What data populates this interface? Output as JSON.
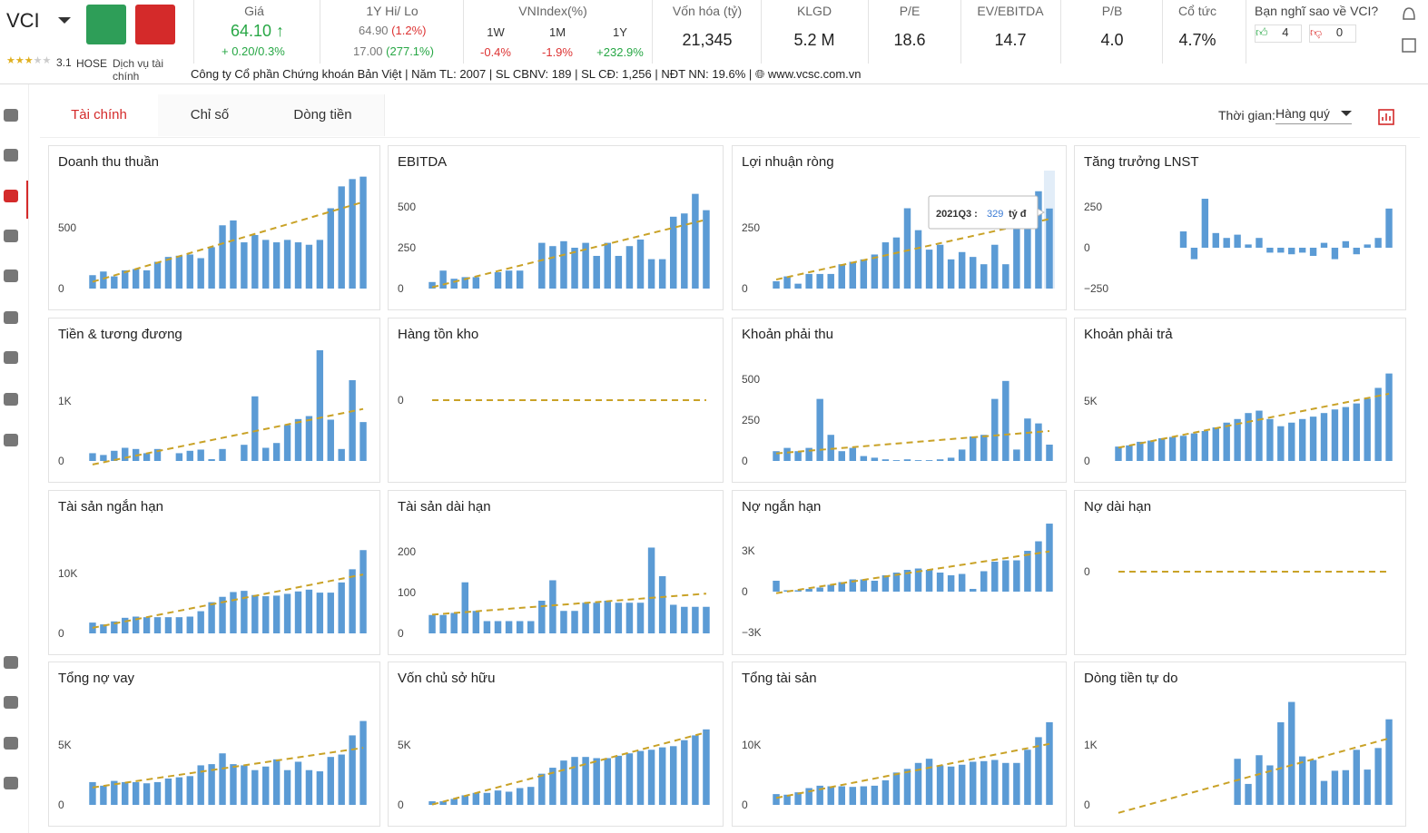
{
  "header": {
    "ticker": "VCI",
    "rating": "3.1",
    "exchange": "HOSE",
    "sector": "Dịch vụ tài chính",
    "price": {
      "label": "Giá",
      "value": "64.10",
      "change": "+ 0.20/0.3%"
    },
    "hi_lo": {
      "label": "1Y Hi/ Lo",
      "hi": "64.90",
      "hi_pct": "(1.2%)",
      "lo": "17.00",
      "lo_pct": "(277.1%)"
    },
    "vnindex": {
      "label": "VNIndex(%)",
      "periods": [
        "1W",
        "1M",
        "1Y"
      ],
      "values": [
        "-0.4%",
        "-1.9%",
        "+232.9%"
      ]
    },
    "metrics": [
      {
        "label": "Vốn hóa (tỷ)",
        "value": "21,345"
      },
      {
        "label": "KLGD",
        "value": "5.2 M"
      },
      {
        "label": "P/E",
        "value": "18.6"
      },
      {
        "label": "EV/EBITDA",
        "value": "14.7"
      },
      {
        "label": "P/B",
        "value": "4.0"
      },
      {
        "label": "Cổ tức",
        "value": "4.7%"
      }
    ],
    "vote": {
      "question": "Bạn nghĩ sao về VCI?",
      "up": "4",
      "down": "0"
    }
  },
  "company": {
    "name": "Công ty Cổ phần Chứng khoán Bản Việt",
    "items": [
      {
        "label": "Năm TL:",
        "value": "2007"
      },
      {
        "label": "SL CBNV:",
        "value": "189"
      },
      {
        "label": "SL CĐ:",
        "value": "1,256"
      },
      {
        "label": "NĐT NN:",
        "value": "19.6%"
      }
    ],
    "website": "www.vcsc.com.vn"
  },
  "tabs": [
    "Tài chính",
    "Chỉ số",
    "Dòng tiền"
  ],
  "time_filter": {
    "label": "Thời gian:",
    "value": "Hàng quý"
  },
  "bar_color": "#5b9bd5",
  "trend_color": "#c9a227",
  "chart_data": [
    {
      "type": "bar",
      "title": "Doanh thu thuần",
      "ylim": [
        0,
        910
      ],
      "yticks": [
        0,
        500
      ],
      "trend": true,
      "values": [
        110,
        140,
        100,
        150,
        160,
        150,
        220,
        260,
        270,
        280,
        250,
        340,
        520,
        560,
        380,
        440,
        400,
        380,
        400,
        380,
        360,
        400,
        660,
        840,
        900,
        920
      ]
    },
    {
      "type": "bar",
      "title": "EBITDA",
      "ylim": [
        0,
        678
      ],
      "yticks": [
        0,
        250,
        500
      ],
      "trend": true,
      "values": [
        40,
        110,
        60,
        70,
        70,
        0,
        100,
        110,
        110,
        0,
        280,
        260,
        290,
        250,
        280,
        200,
        280,
        200,
        260,
        300,
        180,
        180,
        440,
        460,
        580,
        480
      ]
    },
    {
      "type": "bar",
      "title": "Lợi nhuận ròng",
      "ylim": [
        0,
        455
      ],
      "yticks": [
        0,
        250
      ],
      "trend": true,
      "values": [
        30,
        50,
        20,
        60,
        60,
        60,
        100,
        110,
        120,
        140,
        190,
        210,
        330,
        240,
        160,
        180,
        120,
        150,
        130,
        100,
        180,
        100,
        300,
        330,
        400,
        329
      ],
      "tooltip": {
        "period": "2021Q3 :",
        "value": 329,
        "unit": "tỷ đ"
      }
    },
    {
      "type": "bar",
      "title": "Tăng trưởng LNST",
      "ylim": [
        -250,
        428
      ],
      "yticks": [
        {
          "value": -250,
          "label": "−250"
        },
        0,
        250
      ],
      "trend": false,
      "values": [
        0,
        0,
        0,
        0,
        0,
        0,
        100,
        -70,
        300,
        90,
        60,
        80,
        20,
        60,
        -30,
        -30,
        -40,
        -30,
        -50,
        30,
        -70,
        40,
        -40,
        20,
        60,
        240
      ]
    },
    {
      "type": "bar",
      "title": "Tiền & tương đương",
      "ylim": [
        0,
        1850
      ],
      "yticks": [
        0,
        {
          "value": 1000,
          "label": "1K"
        }
      ],
      "trend": true,
      "values": [
        130,
        100,
        170,
        220,
        200,
        130,
        200,
        0,
        130,
        170,
        190,
        30,
        200,
        0,
        270,
        1080,
        220,
        300,
        600,
        700,
        750,
        1850,
        690,
        200,
        1350,
        650
      ]
    },
    {
      "type": "bar",
      "title": "Hàng tồn kho",
      "ylim": [
        -1.22,
        1
      ],
      "yticks": [
        0
      ],
      "trend": true,
      "values": [
        0,
        0,
        0,
        0,
        0,
        0,
        0,
        0,
        0,
        0,
        0,
        0,
        0,
        0,
        0,
        0,
        0,
        0,
        0,
        0,
        0,
        0,
        0,
        0,
        0,
        0
      ]
    },
    {
      "type": "bar",
      "title": "Khoản phải thu",
      "ylim": [
        0,
        678
      ],
      "yticks": [
        0,
        250,
        500
      ],
      "trend": true,
      "values": [
        60,
        80,
        60,
        80,
        380,
        160,
        60,
        80,
        30,
        20,
        10,
        5,
        10,
        5,
        5,
        10,
        20,
        70,
        150,
        160,
        380,
        490,
        70,
        260,
        230,
        100
      ]
    },
    {
      "type": "bar",
      "title": "Khoản phải trả",
      "ylim": [
        0,
        9240
      ],
      "yticks": [
        0,
        {
          "value": 5000,
          "label": "5K"
        }
      ],
      "trend": true,
      "values": [
        1200,
        1300,
        1600,
        1700,
        1900,
        2000,
        2100,
        2300,
        2500,
        2800,
        3200,
        3500,
        4000,
        4200,
        3500,
        2900,
        3200,
        3500,
        3700,
        4000,
        4300,
        4500,
        4800,
        5200,
        6100,
        7300
      ]
    },
    {
      "type": "bar",
      "title": "Tài sản ngắn hạn",
      "ylim": [
        0,
        18480
      ],
      "yticks": [
        0,
        {
          "value": 10000,
          "label": "10K"
        }
      ],
      "trend": true,
      "values": [
        1800,
        1500,
        2000,
        2600,
        2800,
        2700,
        2700,
        2700,
        2700,
        2800,
        3700,
        5200,
        6100,
        6900,
        7100,
        6400,
        6200,
        6300,
        6600,
        7000,
        7300,
        6800,
        6800,
        8500,
        10700,
        13900
      ]
    },
    {
      "type": "bar",
      "title": "Tài sản dài hạn",
      "ylim": [
        0,
        271
      ],
      "yticks": [
        0,
        100,
        200
      ],
      "trend": true,
      "values": [
        45,
        45,
        50,
        125,
        55,
        30,
        30,
        30,
        30,
        30,
        80,
        130,
        55,
        55,
        75,
        75,
        80,
        75,
        75,
        75,
        210,
        140,
        70,
        65,
        65,
        65
      ]
    },
    {
      "type": "bar",
      "title": "Nợ ngắn hạn",
      "ylim": [
        -3070,
        5070
      ],
      "yticks": [
        {
          "value": -3000,
          "label": "−3K"
        },
        0,
        {
          "value": 3000,
          "label": "3K"
        }
      ],
      "trend": true,
      "values": [
        800,
        100,
        100,
        200,
        300,
        500,
        700,
        900,
        900,
        800,
        1200,
        1400,
        1600,
        1700,
        1600,
        1400,
        1200,
        1300,
        200,
        1500,
        2200,
        2300,
        2300,
        3000,
        3700,
        5000
      ]
    },
    {
      "type": "bar",
      "title": "Nợ dài hạn",
      "ylim": [
        -1.26,
        1
      ],
      "yticks": [
        0
      ],
      "trend": true,
      "values": [
        0,
        0,
        0,
        0,
        0,
        0,
        0,
        0,
        0,
        0,
        0,
        0,
        0,
        0,
        0,
        0,
        0,
        0,
        0,
        0,
        0,
        0,
        0,
        0,
        0,
        0
      ]
    },
    {
      "type": "bar",
      "title": "Tổng nợ vay",
      "ylim": [
        0,
        9240
      ],
      "yticks": [
        0,
        {
          "value": 5000,
          "label": "5K"
        }
      ],
      "trend": true,
      "values": [
        1900,
        1600,
        2000,
        1900,
        1900,
        1800,
        1900,
        2200,
        2300,
        2400,
        3300,
        3400,
        4300,
        3400,
        3300,
        2900,
        3200,
        3800,
        2900,
        3600,
        2900,
        2800,
        4000,
        4200,
        5800,
        7000
      ]
    },
    {
      "type": "bar",
      "title": "Vốn chủ sở hữu",
      "ylim": [
        0,
        9240
      ],
      "yticks": [
        0,
        {
          "value": 5000,
          "label": "5K"
        }
      ],
      "trend": true,
      "values": [
        300,
        300,
        500,
        800,
        1000,
        1000,
        1200,
        1100,
        1400,
        1500,
        2600,
        3100,
        3700,
        4000,
        4000,
        3900,
        3900,
        4100,
        4300,
        4500,
        4600,
        4800,
        4900,
        5400,
        5800,
        6300
      ]
    },
    {
      "type": "bar",
      "title": "Tổng tài sản",
      "ylim": [
        0,
        18480
      ],
      "yticks": [
        0,
        {
          "value": 10000,
          "label": "10K"
        }
      ],
      "trend": true,
      "values": [
        1800,
        1700,
        2100,
        2800,
        3200,
        3100,
        3100,
        3000,
        3100,
        3200,
        4100,
        5400,
        6000,
        7000,
        7700,
        6600,
        6400,
        6700,
        7200,
        7300,
        7500,
        7000,
        7000,
        9200,
        11300,
        13800
      ]
    },
    {
      "type": "bar",
      "title": "Dòng tiền tự do",
      "ylim": [
        0,
        1850
      ],
      "yticks": [
        0,
        {
          "value": 1000,
          "label": "1K"
        }
      ],
      "trend": true,
      "values": [
        0,
        0,
        0,
        0,
        0,
        0,
        0,
        0,
        0,
        0,
        0,
        770,
        350,
        830,
        660,
        1380,
        1720,
        810,
        750,
        400,
        570,
        580,
        920,
        590,
        950,
        1430
      ]
    }
  ]
}
